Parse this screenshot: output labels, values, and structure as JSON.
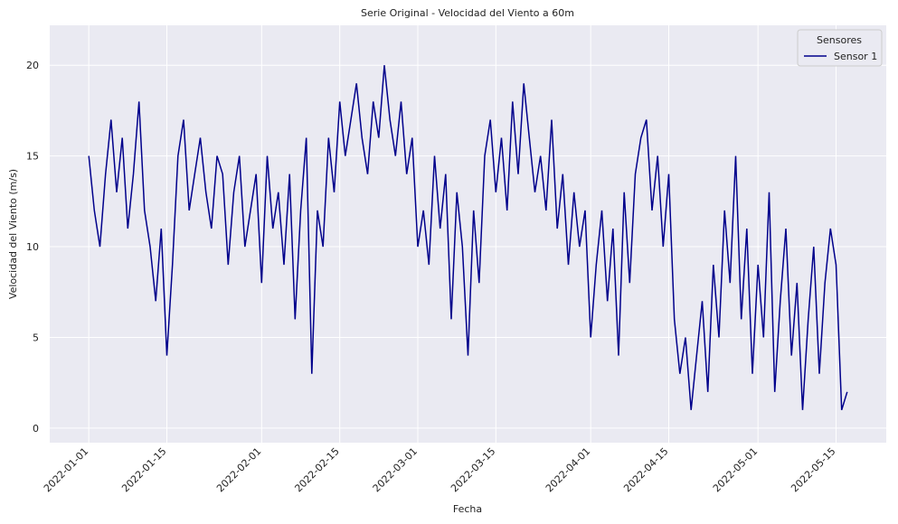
{
  "chart_data": {
    "type": "line",
    "title": "Serie Original - Velocidad del Viento a 60m",
    "x_label": "Fecha",
    "y_label": "Velocidad del Viento (m/s)",
    "legend_title": "Sensores",
    "legend_position": "upper right",
    "grid": true,
    "x": [
      "2022-01-01",
      "2022-01-02",
      "2022-01-03",
      "2022-01-04",
      "2022-01-05",
      "2022-01-06",
      "2022-01-07",
      "2022-01-08",
      "2022-01-09",
      "2022-01-10",
      "2022-01-11",
      "2022-01-12",
      "2022-01-13",
      "2022-01-14",
      "2022-01-15",
      "2022-01-16",
      "2022-01-17",
      "2022-01-18",
      "2022-01-19",
      "2022-01-20",
      "2022-01-21",
      "2022-01-22",
      "2022-01-23",
      "2022-01-24",
      "2022-01-25",
      "2022-01-26",
      "2022-01-27",
      "2022-01-28",
      "2022-01-29",
      "2022-01-30",
      "2022-01-31",
      "2022-02-01",
      "2022-02-02",
      "2022-02-03",
      "2022-02-04",
      "2022-02-05",
      "2022-02-06",
      "2022-02-07",
      "2022-02-08",
      "2022-02-09",
      "2022-02-10",
      "2022-02-11",
      "2022-02-12",
      "2022-02-13",
      "2022-02-14",
      "2022-02-15",
      "2022-02-16",
      "2022-02-17",
      "2022-02-18",
      "2022-02-19",
      "2022-02-20",
      "2022-02-21",
      "2022-02-22",
      "2022-02-23",
      "2022-02-24",
      "2022-02-25",
      "2022-02-26",
      "2022-02-27",
      "2022-02-28",
      "2022-03-01",
      "2022-03-02",
      "2022-03-03",
      "2022-03-04",
      "2022-03-05",
      "2022-03-06",
      "2022-03-07",
      "2022-03-08",
      "2022-03-09",
      "2022-03-10",
      "2022-03-11",
      "2022-03-12",
      "2022-03-13",
      "2022-03-14",
      "2022-03-15",
      "2022-03-16",
      "2022-03-17",
      "2022-03-18",
      "2022-03-19",
      "2022-03-20",
      "2022-03-21",
      "2022-03-22",
      "2022-03-23",
      "2022-03-24",
      "2022-03-25",
      "2022-03-26",
      "2022-03-27",
      "2022-03-28",
      "2022-03-29",
      "2022-03-30",
      "2022-03-31",
      "2022-04-01",
      "2022-04-02",
      "2022-04-03",
      "2022-04-04",
      "2022-04-05",
      "2022-04-06",
      "2022-04-07",
      "2022-04-08",
      "2022-04-09",
      "2022-04-10",
      "2022-04-11",
      "2022-04-12",
      "2022-04-13",
      "2022-04-14",
      "2022-04-15",
      "2022-04-16",
      "2022-04-17",
      "2022-04-18",
      "2022-04-19",
      "2022-04-20",
      "2022-04-21",
      "2022-04-22",
      "2022-04-23",
      "2022-04-24",
      "2022-04-25",
      "2022-04-26",
      "2022-04-27",
      "2022-04-28",
      "2022-04-29",
      "2022-04-30",
      "2022-05-01",
      "2022-05-02",
      "2022-05-03",
      "2022-05-04",
      "2022-05-05",
      "2022-05-06",
      "2022-05-07",
      "2022-05-08",
      "2022-05-09",
      "2022-05-10",
      "2022-05-11",
      "2022-05-12",
      "2022-05-13",
      "2022-05-14",
      "2022-05-15",
      "2022-05-16",
      "2022-05-17"
    ],
    "series": [
      {
        "name": "Sensor 1",
        "color": "#00008b",
        "values": [
          15,
          12,
          10,
          14,
          17,
          13,
          16,
          11,
          14,
          18,
          12,
          10,
          7,
          11,
          4,
          9,
          15,
          17,
          12,
          14,
          16,
          13,
          11,
          15,
          14,
          9,
          13,
          15,
          10,
          12,
          14,
          8,
          15,
          11,
          13,
          9,
          14,
          6,
          12,
          16,
          3,
          12,
          10,
          16,
          13,
          18,
          15,
          17,
          19,
          16,
          14,
          18,
          16,
          20,
          17,
          15,
          18,
          14,
          16,
          10,
          12,
          9,
          15,
          11,
          14,
          6,
          13,
          10,
          4,
          12,
          8,
          15,
          17,
          13,
          16,
          12,
          18,
          14,
          19,
          16,
          13,
          15,
          12,
          17,
          11,
          14,
          9,
          13,
          10,
          12,
          5,
          9,
          12,
          7,
          11,
          4,
          13,
          8,
          14,
          16,
          17,
          12,
          15,
          10,
          14,
          6,
          3,
          5,
          1,
          4,
          7,
          2,
          9,
          5,
          12,
          8,
          15,
          6,
          11,
          3,
          9,
          5,
          13,
          2,
          7,
          11,
          4,
          8,
          1,
          6,
          10,
          3,
          8,
          11,
          9,
          1,
          2
        ]
      }
    ],
    "xlim": [
      "2021-12-25",
      "2022-05-24"
    ],
    "xticks": [
      "2022-01-01",
      "2022-01-15",
      "2022-02-01",
      "2022-02-15",
      "2022-03-01",
      "2022-03-15",
      "2022-04-01",
      "2022-04-15",
      "2022-05-01",
      "2022-05-15"
    ],
    "ylim": [
      -0.8,
      22.2
    ],
    "yticks": [
      0,
      5,
      10,
      15,
      20
    ]
  }
}
